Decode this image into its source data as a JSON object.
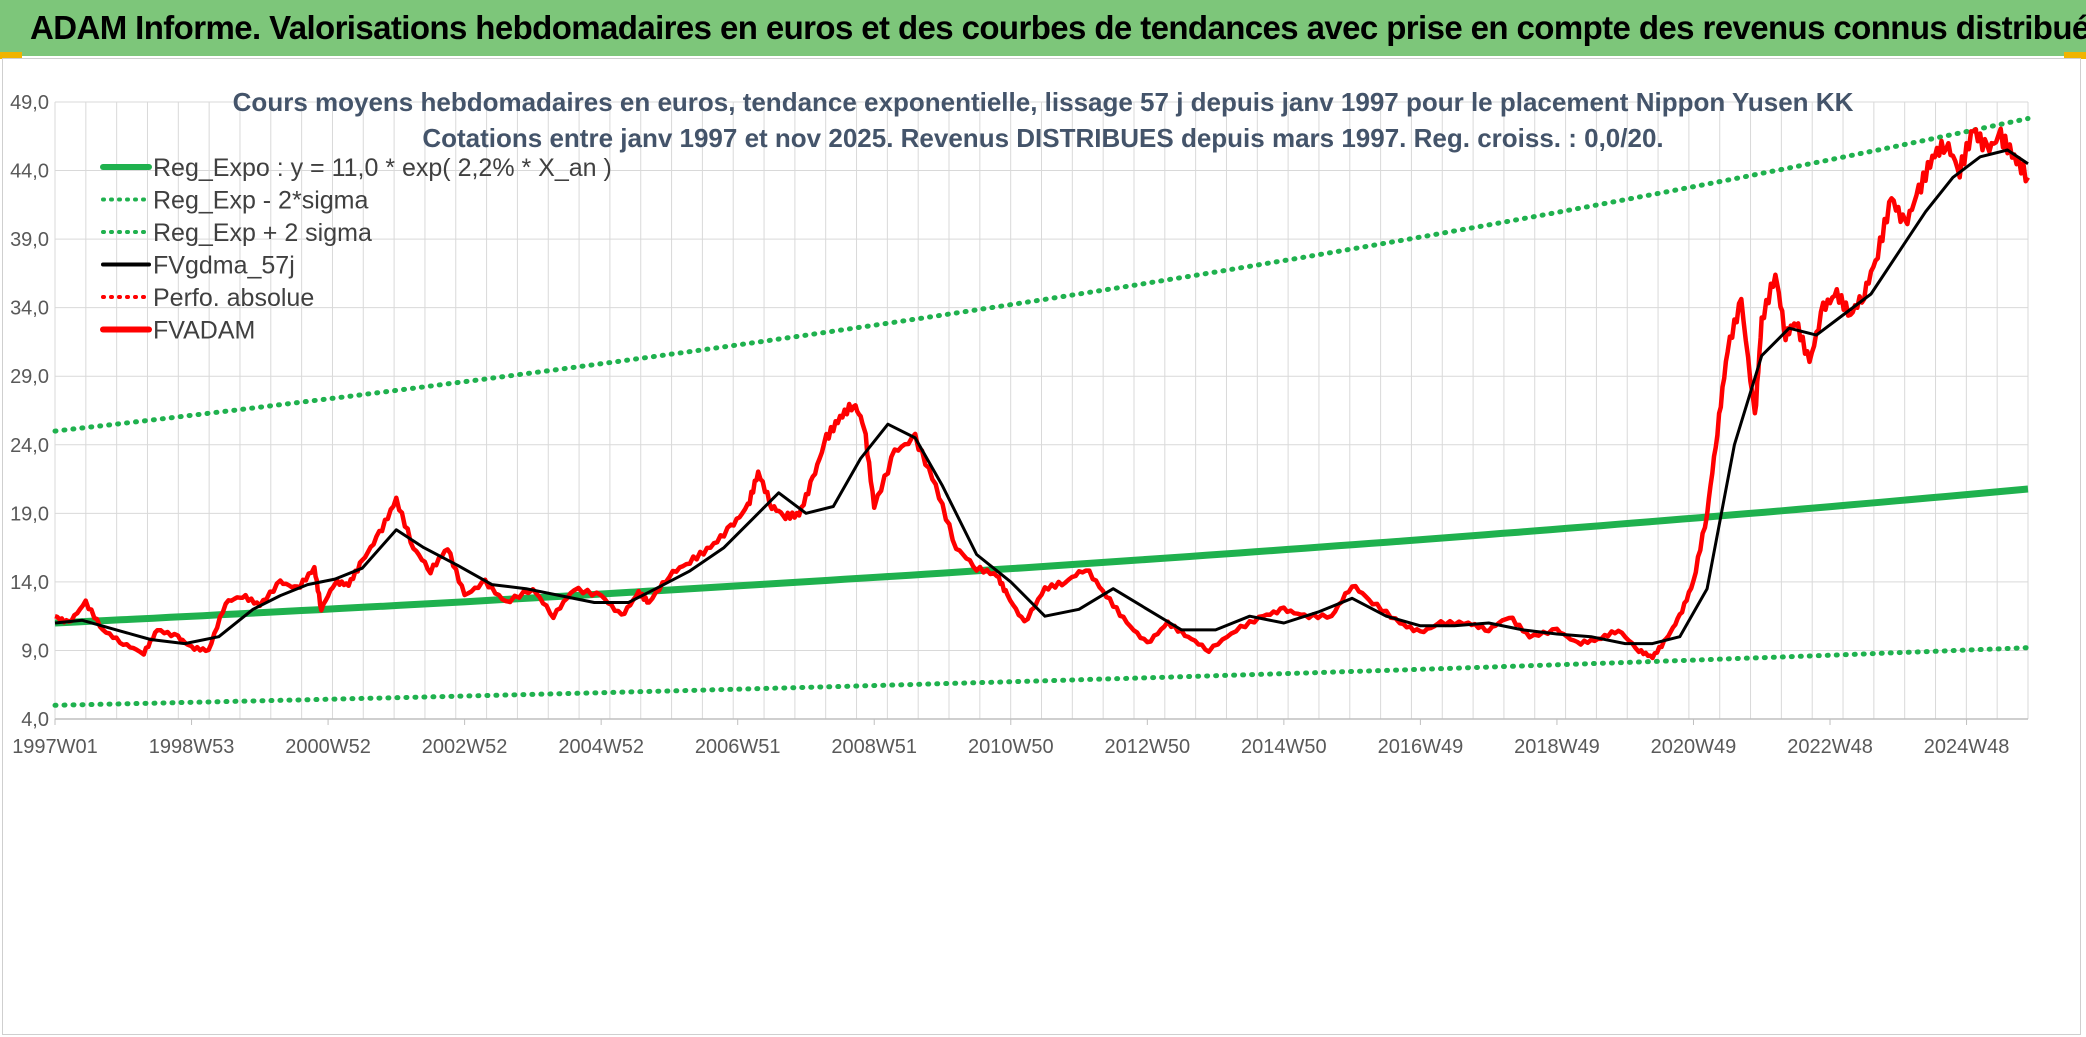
{
  "header": {
    "title": "ADAM Informe. Valorisations hebdomadaires en euros et des courbes de tendances avec prise en compte des revenus connus distribués"
  },
  "colors": {
    "banner": "#7dc67a",
    "accent": "#f0b400",
    "reg_expo": "#1fb14e",
    "sigma": "#1fb14e",
    "fvgdma": "#000000",
    "perfo": "#ff0000",
    "fvadam": "#ff0000"
  },
  "chart_data": {
    "type": "line",
    "title_line1": "Cours moyens hebdomadaires en euros, tendance exponentielle, lissage 57 j depuis janv 1997 pour le placement Nippon Yusen KK",
    "title_line2": "Cotations entre janv 1997 et nov 2025. Revenus DISTRIBUES depuis mars 1997. Reg. croiss. : 0,0/20.",
    "xlabel": "",
    "ylabel": "",
    "x_range": [
      1997.0,
      2025.9
    ],
    "ylim": [
      4.0,
      49.0
    ],
    "y_ticks": [
      "4,0",
      "9,0",
      "14,0",
      "19,0",
      "24,0",
      "29,0",
      "34,0",
      "39,0",
      "44,0",
      "49,0"
    ],
    "x_ticks": [
      "1997W01",
      "1998W53",
      "2000W52",
      "2002W52",
      "2004W52",
      "2006W51",
      "2008W51",
      "2010W50",
      "2012W50",
      "2014W50",
      "2016W49",
      "2018W49",
      "2020W49",
      "2022W48",
      "2024W48"
    ],
    "x_tick_years": [
      1997.0,
      1999.0,
      2001.0,
      2003.0,
      2005.0,
      2007.0,
      2009.0,
      2011.0,
      2013.0,
      2015.0,
      2017.0,
      2019.0,
      2021.0,
      2023.0,
      2025.0
    ],
    "legend": [
      {
        "label": "Reg_Expo : y = 11,0 * exp( 2,2% *  X_an )",
        "style": "solid-thick",
        "color": "#1fb14e"
      },
      {
        "label": "Reg_Exp - 2*sigma",
        "style": "dotted",
        "color": "#1fb14e"
      },
      {
        "label": "Reg_Exp + 2 sigma",
        "style": "dotted",
        "color": "#1fb14e"
      },
      {
        "label": "FVgdma_57j",
        "style": "solid",
        "color": "#000000"
      },
      {
        "label": "Perfo. absolue",
        "style": "dotted",
        "color": "#ff0000"
      },
      {
        "label": "FVADAM",
        "style": "solid-thick",
        "color": "#ff0000"
      }
    ],
    "series": [
      {
        "name": "Reg_Expo",
        "x": [
          1997.0,
          2025.9
        ],
        "formula": "11.0*exp(0.022*(x-1997))"
      },
      {
        "name": "Reg_Exp - 2*sigma",
        "x": [
          1997.0,
          2025.9
        ],
        "y_start": 5.0,
        "y_end": 9.2
      },
      {
        "name": "Reg_Exp + 2 sigma",
        "x": [
          1997.0,
          2025.9
        ],
        "y_start": 25.0,
        "y_end": 47.8
      },
      {
        "name": "FVADAM",
        "x": [
          1997.0,
          1997.2,
          1997.45,
          1997.7,
          1998.0,
          1998.3,
          1998.5,
          1998.8,
          1999.0,
          1999.25,
          1999.5,
          1999.75,
          2000.0,
          2000.3,
          2000.55,
          2000.8,
          2000.9,
          2001.1,
          2001.3,
          2001.5,
          2001.75,
          2002.0,
          2002.25,
          2002.5,
          2002.75,
          2003.0,
          2003.3,
          2003.6,
          2004.0,
          2004.3,
          2004.6,
          2005.0,
          2005.3,
          2005.55,
          2005.7,
          2006.0,
          2006.3,
          2006.6,
          2006.9,
          2007.15,
          2007.3,
          2007.5,
          2007.7,
          2007.9,
          2008.1,
          2008.3,
          2008.5,
          2008.7,
          2008.85,
          2009.0,
          2009.3,
          2009.6,
          2009.9,
          2010.2,
          2010.5,
          2010.8,
          2010.95,
          2011.2,
          2011.5,
          2011.8,
          2012.1,
          2012.4,
          2012.7,
          2013.0,
          2013.3,
          2013.6,
          2013.9,
          2014.3,
          2014.7,
          2015.0,
          2015.3,
          2015.7,
          2016.0,
          2016.3,
          2016.7,
          2017.0,
          2017.3,
          2017.7,
          2018.0,
          2018.3,
          2018.6,
          2019.0,
          2019.3,
          2019.6,
          2019.9,
          2020.2,
          2020.4,
          2020.6,
          2020.8,
          2021.0,
          2021.2,
          2021.35,
          2021.5,
          2021.7,
          2021.9,
          2022.0,
          2022.2,
          2022.35,
          2022.5,
          2022.7,
          2022.9,
          2023.1,
          2023.3,
          2023.5,
          2023.7,
          2023.9,
          2024.1,
          2024.3,
          2024.5,
          2024.7,
          2024.9,
          2025.1,
          2025.3,
          2025.5,
          2025.7,
          2025.9
        ],
        "y": [
          11.5,
          11.0,
          12.5,
          10.5,
          9.5,
          8.8,
          10.5,
          10.0,
          9.2,
          9.0,
          12.5,
          13.0,
          12.3,
          14.0,
          13.5,
          15.0,
          12.0,
          14.0,
          13.8,
          15.5,
          17.5,
          20.0,
          16.5,
          14.8,
          16.5,
          13.0,
          14.0,
          12.5,
          13.5,
          11.5,
          13.5,
          13.0,
          11.5,
          13.2,
          12.5,
          14.5,
          15.5,
          16.5,
          18.0,
          19.5,
          22.0,
          19.5,
          18.8,
          18.9,
          21.5,
          24.5,
          26.0,
          27.0,
          25.5,
          19.5,
          23.5,
          24.5,
          21.0,
          16.5,
          15.0,
          14.5,
          13.0,
          11.0,
          13.5,
          14.0,
          15.0,
          13.0,
          11.0,
          9.5,
          11.0,
          10.0,
          9.0,
          10.5,
          11.5,
          12.0,
          11.5,
          11.5,
          13.8,
          12.5,
          11.0,
          10.3,
          11.0,
          11.0,
          10.5,
          11.5,
          10.0,
          10.5,
          9.5,
          9.8,
          10.5,
          9.0,
          8.5,
          9.8,
          11.5,
          14.0,
          19.0,
          25.0,
          31.0,
          34.5,
          26.0,
          33.0,
          36.5,
          32.0,
          33.0,
          30.0,
          34.0,
          35.0,
          33.5,
          35.0,
          38.0,
          42.0,
          40.0,
          42.5,
          45.0,
          46.0,
          44.0,
          47.0,
          45.5,
          46.5,
          45.0,
          43.5
        ]
      },
      {
        "name": "FVgdma_57j",
        "x": [
          1997.0,
          1997.4,
          1997.9,
          1998.4,
          1998.9,
          1999.4,
          1999.9,
          2000.3,
          2000.7,
          2001.1,
          2001.5,
          2002.0,
          2002.4,
          2002.9,
          2003.4,
          2003.9,
          2004.4,
          2004.9,
          2005.4,
          2005.8,
          2006.3,
          2006.8,
          2007.2,
          2007.6,
          2008.0,
          2008.4,
          2008.8,
          2009.2,
          2009.6,
          2010.0,
          2010.5,
          2011.0,
          2011.5,
          2012.0,
          2012.5,
          2013.0,
          2013.5,
          2014.0,
          2014.5,
          2015.0,
          2015.5,
          2016.0,
          2016.5,
          2017.0,
          2017.5,
          2018.0,
          2018.5,
          2019.0,
          2019.5,
          2020.0,
          2020.4,
          2020.8,
          2021.2,
          2021.6,
          2022.0,
          2022.4,
          2022.8,
          2023.2,
          2023.6,
          2024.0,
          2024.4,
          2024.8,
          2025.2,
          2025.6,
          2025.9
        ],
        "y": [
          11.0,
          11.2,
          10.5,
          9.8,
          9.5,
          10.0,
          12.0,
          13.0,
          13.8,
          14.2,
          15.0,
          17.8,
          16.5,
          15.2,
          13.8,
          13.5,
          13.0,
          12.5,
          12.5,
          13.5,
          14.8,
          16.5,
          18.5,
          20.5,
          19.0,
          19.5,
          23.0,
          25.5,
          24.5,
          21.0,
          16.0,
          14.0,
          11.5,
          12.0,
          13.5,
          12.0,
          10.5,
          10.5,
          11.5,
          11.0,
          11.8,
          12.8,
          11.5,
          10.8,
          10.8,
          11.0,
          10.5,
          10.2,
          10.0,
          9.5,
          9.5,
          10.0,
          13.5,
          24.0,
          30.5,
          32.5,
          32.0,
          33.5,
          35.0,
          38.0,
          41.0,
          43.5,
          45.0,
          45.5,
          44.5
        ]
      }
    ]
  }
}
